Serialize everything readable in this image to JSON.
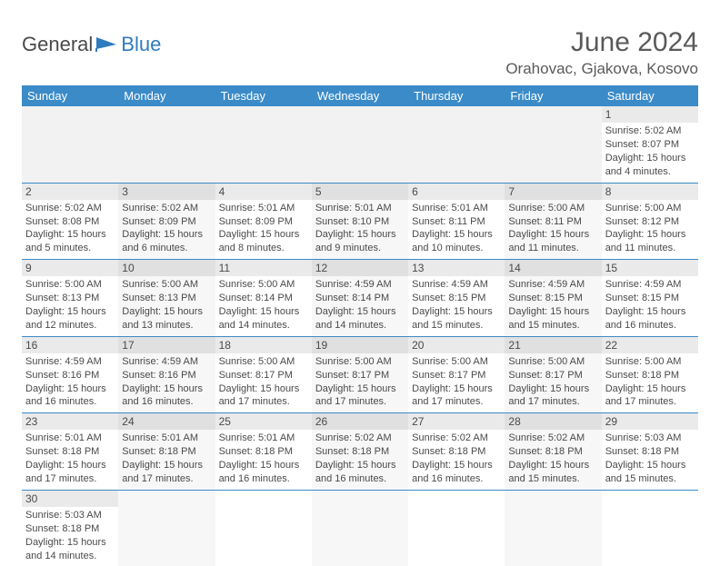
{
  "logo": {
    "general": "General",
    "blue": "Blue"
  },
  "title": {
    "month_year": "June 2024",
    "location": "Orahovac, Gjakova, Kosovo"
  },
  "colors": {
    "header_bg": "#3b8bc9",
    "header_text": "#ffffff",
    "body_text": "#4a4a4a",
    "alt_row_bg": "#f7f7f7",
    "daynum_bg": "#eaeaea"
  },
  "day_headers": [
    "Sunday",
    "Monday",
    "Tuesday",
    "Wednesday",
    "Thursday",
    "Friday",
    "Saturday"
  ],
  "weeks": [
    [
      null,
      null,
      null,
      null,
      null,
      null,
      {
        "n": "1",
        "sunrise": "5:02 AM",
        "sunset": "8:07 PM",
        "daylight": "15 hours and 4 minutes."
      }
    ],
    [
      {
        "n": "2",
        "sunrise": "5:02 AM",
        "sunset": "8:08 PM",
        "daylight": "15 hours and 5 minutes."
      },
      {
        "n": "3",
        "sunrise": "5:02 AM",
        "sunset": "8:09 PM",
        "daylight": "15 hours and 6 minutes."
      },
      {
        "n": "4",
        "sunrise": "5:01 AM",
        "sunset": "8:09 PM",
        "daylight": "15 hours and 8 minutes."
      },
      {
        "n": "5",
        "sunrise": "5:01 AM",
        "sunset": "8:10 PM",
        "daylight": "15 hours and 9 minutes."
      },
      {
        "n": "6",
        "sunrise": "5:01 AM",
        "sunset": "8:11 PM",
        "daylight": "15 hours and 10 minutes."
      },
      {
        "n": "7",
        "sunrise": "5:00 AM",
        "sunset": "8:11 PM",
        "daylight": "15 hours and 11 minutes."
      },
      {
        "n": "8",
        "sunrise": "5:00 AM",
        "sunset": "8:12 PM",
        "daylight": "15 hours and 11 minutes."
      }
    ],
    [
      {
        "n": "9",
        "sunrise": "5:00 AM",
        "sunset": "8:13 PM",
        "daylight": "15 hours and 12 minutes."
      },
      {
        "n": "10",
        "sunrise": "5:00 AM",
        "sunset": "8:13 PM",
        "daylight": "15 hours and 13 minutes."
      },
      {
        "n": "11",
        "sunrise": "5:00 AM",
        "sunset": "8:14 PM",
        "daylight": "15 hours and 14 minutes."
      },
      {
        "n": "12",
        "sunrise": "4:59 AM",
        "sunset": "8:14 PM",
        "daylight": "15 hours and 14 minutes."
      },
      {
        "n": "13",
        "sunrise": "4:59 AM",
        "sunset": "8:15 PM",
        "daylight": "15 hours and 15 minutes."
      },
      {
        "n": "14",
        "sunrise": "4:59 AM",
        "sunset": "8:15 PM",
        "daylight": "15 hours and 15 minutes."
      },
      {
        "n": "15",
        "sunrise": "4:59 AM",
        "sunset": "8:15 PM",
        "daylight": "15 hours and 16 minutes."
      }
    ],
    [
      {
        "n": "16",
        "sunrise": "4:59 AM",
        "sunset": "8:16 PM",
        "daylight": "15 hours and 16 minutes."
      },
      {
        "n": "17",
        "sunrise": "4:59 AM",
        "sunset": "8:16 PM",
        "daylight": "15 hours and 16 minutes."
      },
      {
        "n": "18",
        "sunrise": "5:00 AM",
        "sunset": "8:17 PM",
        "daylight": "15 hours and 17 minutes."
      },
      {
        "n": "19",
        "sunrise": "5:00 AM",
        "sunset": "8:17 PM",
        "daylight": "15 hours and 17 minutes."
      },
      {
        "n": "20",
        "sunrise": "5:00 AM",
        "sunset": "8:17 PM",
        "daylight": "15 hours and 17 minutes."
      },
      {
        "n": "21",
        "sunrise": "5:00 AM",
        "sunset": "8:17 PM",
        "daylight": "15 hours and 17 minutes."
      },
      {
        "n": "22",
        "sunrise": "5:00 AM",
        "sunset": "8:18 PM",
        "daylight": "15 hours and 17 minutes."
      }
    ],
    [
      {
        "n": "23",
        "sunrise": "5:01 AM",
        "sunset": "8:18 PM",
        "daylight": "15 hours and 17 minutes."
      },
      {
        "n": "24",
        "sunrise": "5:01 AM",
        "sunset": "8:18 PM",
        "daylight": "15 hours and 17 minutes."
      },
      {
        "n": "25",
        "sunrise": "5:01 AM",
        "sunset": "8:18 PM",
        "daylight": "15 hours and 16 minutes."
      },
      {
        "n": "26",
        "sunrise": "5:02 AM",
        "sunset": "8:18 PM",
        "daylight": "15 hours and 16 minutes."
      },
      {
        "n": "27",
        "sunrise": "5:02 AM",
        "sunset": "8:18 PM",
        "daylight": "15 hours and 16 minutes."
      },
      {
        "n": "28",
        "sunrise": "5:02 AM",
        "sunset": "8:18 PM",
        "daylight": "15 hours and 15 minutes."
      },
      {
        "n": "29",
        "sunrise": "5:03 AM",
        "sunset": "8:18 PM",
        "daylight": "15 hours and 15 minutes."
      }
    ],
    [
      {
        "n": "30",
        "sunrise": "5:03 AM",
        "sunset": "8:18 PM",
        "daylight": "15 hours and 14 minutes."
      },
      null,
      null,
      null,
      null,
      null,
      null
    ]
  ],
  "labels": {
    "sunrise": "Sunrise: ",
    "sunset": "Sunset: ",
    "daylight": "Daylight: "
  }
}
